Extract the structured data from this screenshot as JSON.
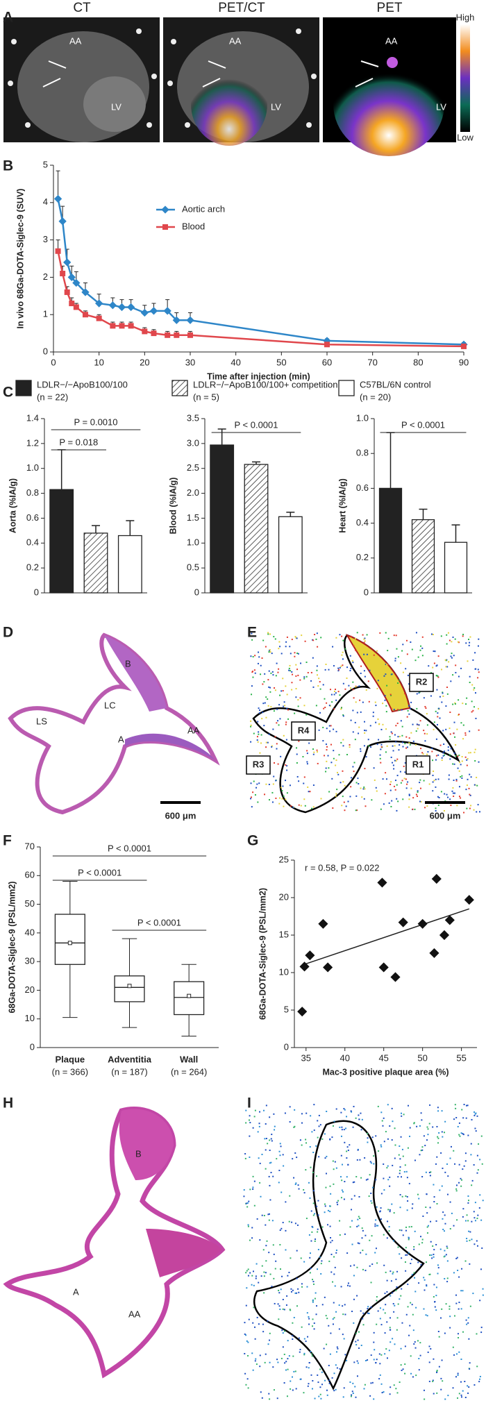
{
  "panel_letters": [
    "A",
    "B",
    "C",
    "D",
    "E",
    "F",
    "G",
    "H",
    "I"
  ],
  "panels": {
    "A": {
      "images": [
        {
          "title": "CT",
          "labels": [
            "AA",
            "LV"
          ]
        },
        {
          "title": "PET/CT",
          "labels": [
            "AA",
            "LV"
          ]
        },
        {
          "title": "PET",
          "labels": [
            "AA",
            "LV"
          ]
        }
      ],
      "colorbar": {
        "high": "High",
        "low": "Low"
      }
    },
    "D": {
      "labels": [
        "B",
        "LC",
        "LS",
        "A",
        "AA"
      ],
      "scale_bar": "600 μm"
    },
    "E": {
      "labels": [
        "R2",
        "R4",
        "R3",
        "R1"
      ],
      "scale_bar": "600 μm"
    },
    "H": {
      "labels": [
        "B",
        "A",
        "AA"
      ]
    }
  },
  "legend_c": [
    {
      "label": "LDLR−/−ApoB100/100",
      "note": "(n = 22)",
      "pattern": "solid"
    },
    {
      "label": "LDLR−/−ApoB100/100+ competition",
      "note": "(n = 5)",
      "pattern": "hatch"
    },
    {
      "label": "C57BL/6N control",
      "note": "(n = 20)",
      "pattern": "open"
    }
  ],
  "chart_data": [
    {
      "type": "line",
      "ylabel": "In vivo 68Ga-DOTA-Siglec-9 (SUV)",
      "xlabel": "Time after injection (min)",
      "x": [
        1,
        2,
        3,
        4,
        5,
        7,
        10,
        13,
        15,
        17,
        20,
        22,
        25,
        27,
        30,
        60,
        90
      ],
      "series": [
        {
          "name": "Aortic arch",
          "color": "#2e86c8",
          "marker": "diamond",
          "values": [
            4.1,
            3.5,
            2.4,
            2.0,
            1.85,
            1.6,
            1.3,
            1.25,
            1.2,
            1.2,
            1.05,
            1.1,
            1.1,
            0.85,
            0.85,
            0.3,
            0.2
          ],
          "errors": [
            0.75,
            0.4,
            0.35,
            0.3,
            0.3,
            0.25,
            0.25,
            0.2,
            0.2,
            0.2,
            0.2,
            0.2,
            0.3,
            0.2,
            0.2,
            0.05,
            0.05
          ]
        },
        {
          "name": "Blood",
          "color": "#e0474c",
          "marker": "square",
          "values": [
            2.7,
            2.1,
            1.6,
            1.3,
            1.2,
            1.0,
            0.9,
            0.7,
            0.7,
            0.7,
            0.55,
            0.5,
            0.45,
            0.45,
            0.45,
            0.2,
            0.15
          ],
          "errors": [
            0.3,
            0.2,
            0.15,
            0.15,
            0.1,
            0.1,
            0.1,
            0.1,
            0.1,
            0.1,
            0.1,
            0.1,
            0.1,
            0.1,
            0.1,
            0.03,
            0.03
          ]
        }
      ],
      "xlim": [
        0,
        90
      ],
      "xticks": [
        0,
        10,
        20,
        30,
        40,
        50,
        60,
        70,
        80,
        90
      ],
      "ylim": [
        0,
        5
      ],
      "yticks": [
        0,
        1,
        2,
        3,
        4,
        5
      ]
    },
    {
      "type": "bar",
      "ylabel": "Aorta (%IA/g)",
      "categories": [
        null,
        null,
        null
      ],
      "values": [
        0.83,
        0.48,
        0.46
      ],
      "errors": [
        0.32,
        0.06,
        0.12
      ],
      "ylim": [
        0,
        1.4
      ],
      "yticks": [
        0,
        0.2,
        0.4,
        0.6,
        0.8,
        {
          "value": 1,
          "label": "1.0"
        },
        1.2,
        1.4
      ],
      "annotations": [
        "P = 0.018",
        "P = 0.0010"
      ]
    },
    {
      "type": "bar",
      "ylabel": "Blood (%IA/g)",
      "categories": [
        null,
        null,
        null
      ],
      "values": [
        2.97,
        2.58,
        1.53
      ],
      "errors": [
        0.32,
        0.05,
        0.09
      ],
      "ylim": [
        0,
        3.5
      ],
      "yticks": [
        0,
        0.5,
        {
          "value": 1,
          "label": "1.0"
        },
        1.5,
        {
          "value": 2,
          "label": "2.0"
        },
        2.5,
        {
          "value": 3,
          "label": "3.0"
        },
        3.5
      ],
      "annotations": [
        "P < 0.0001"
      ]
    },
    {
      "type": "bar",
      "ylabel": "Heart (%IA/g)",
      "categories": [
        null,
        null,
        null
      ],
      "values": [
        0.6,
        0.42,
        0.29
      ],
      "errors": [
        0.32,
        0.06,
        0.1
      ],
      "ylim": [
        0,
        1
      ],
      "yticks": [
        0,
        0.2,
        0.4,
        0.6,
        0.8,
        {
          "value": 1,
          "label": "1.0"
        }
      ],
      "annotations": [
        "P < 0.0001"
      ]
    },
    {
      "type": "box",
      "ylabel": "68Ga-DOTA-Siglec-9 (PSL/mm2)",
      "categories": [
        "Plaque",
        "Adventitia",
        "Wall"
      ],
      "category_notes": [
        "(n = 366)",
        "(n = 187)",
        "(n = 264)"
      ],
      "boxes": [
        {
          "min": 10.5,
          "q1": 29,
          "median": 36.5,
          "q3": 46.5,
          "max": 58,
          "mean": 36.5
        },
        {
          "min": 7,
          "q1": 16,
          "median": 21,
          "q3": 25,
          "max": 38,
          "mean": 21.5
        },
        {
          "min": 4,
          "q1": 11.5,
          "median": 17.5,
          "q3": 23,
          "max": 29,
          "mean": 18
        }
      ],
      "ylim": [
        0,
        70
      ],
      "yticks": [
        0,
        10,
        20,
        30,
        40,
        50,
        60,
        70
      ],
      "annotations": [
        "P < 0.0001",
        "P < 0.0001",
        "P < 0.0001"
      ]
    },
    {
      "type": "scatter",
      "ylabel": "68Ga-DOTA-Siglec-9 (PSL/mm2)",
      "xlabel": "Mac-3 positive plaque area (%)",
      "annotation": "r = 0.58, P = 0.022",
      "x": [
        34.5,
        34.8,
        35.5,
        37.2,
        37.8,
        44.8,
        45,
        46.5,
        47.5,
        50,
        51.5,
        51.8,
        52.8,
        53.5,
        56
      ],
      "y": [
        4.8,
        10.8,
        12.3,
        16.5,
        10.7,
        22,
        10.7,
        9.4,
        16.7,
        16.5,
        12.6,
        22.5,
        15,
        17,
        19.7
      ],
      "trendline": {
        "x": [
          34.5,
          56
        ],
        "y": [
          11,
          18.5
        ]
      },
      "xlim": [
        33.5,
        57
      ],
      "xticks": [
        35,
        40,
        45,
        50,
        55
      ],
      "ylim": [
        0,
        25
      ],
      "yticks": [
        0,
        5,
        10,
        15,
        20,
        25
      ]
    }
  ]
}
